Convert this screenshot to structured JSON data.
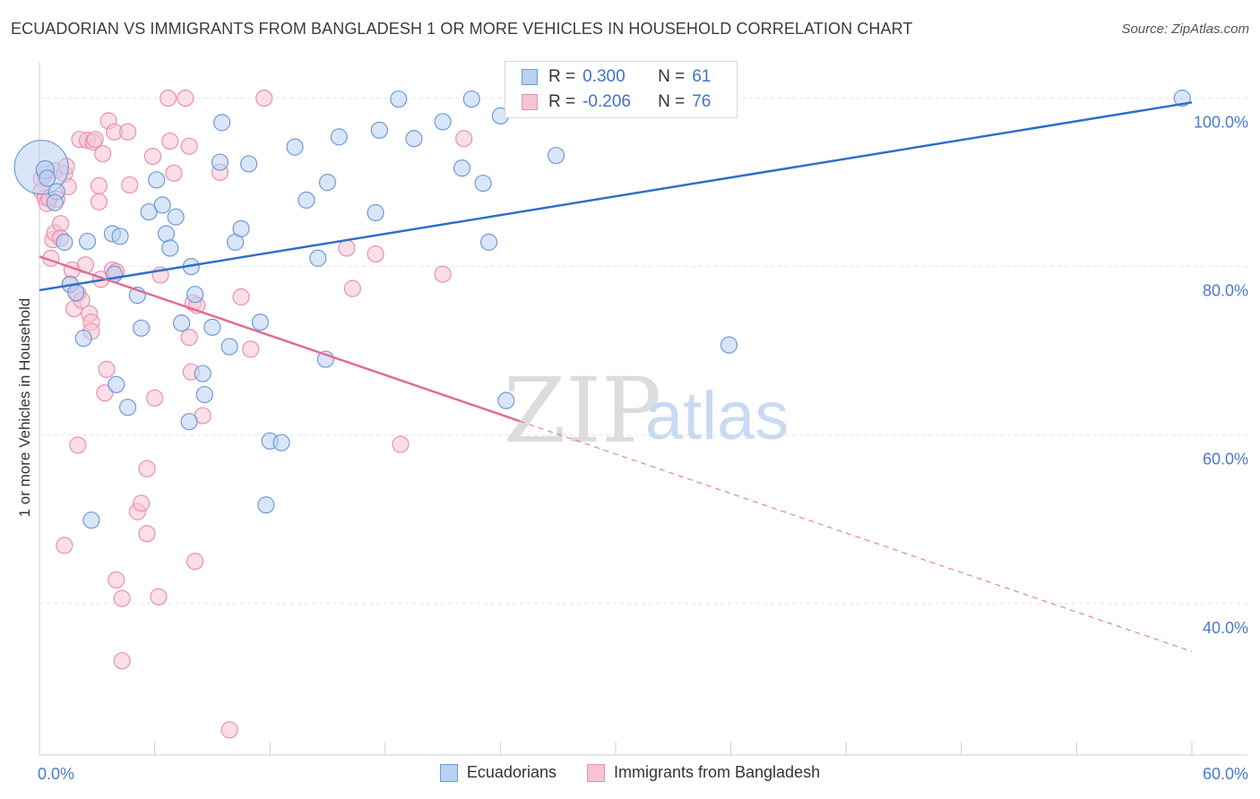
{
  "header": {
    "title": "ECUADORIAN VS IMMIGRANTS FROM BANGLADESH 1 OR MORE VEHICLES IN HOUSEHOLD CORRELATION CHART",
    "source": "Source: ZipAtlas.com"
  },
  "legend": {
    "r_label": "R =",
    "n_label": "N =",
    "series": [
      {
        "r": "0.300",
        "n": "61"
      },
      {
        "r": "-0.206",
        "n": "76"
      }
    ]
  },
  "bottom_legend": [
    "Ecuadorians",
    "Immigrants from Bangladesh"
  ],
  "watermark": {
    "zip": "ZIP",
    "atlas": "atlas"
  },
  "colors": {
    "blue_fill": "#b9d1f2",
    "blue_stroke": "#6e9ad8",
    "blue_line": "#2f6fc9",
    "pink_fill": "#f7c3d4",
    "pink_stroke": "#e891ad",
    "pink_line": "#e06c94",
    "tick_text": "#4a7acb",
    "grid": "#e4e4e4"
  },
  "chart_data": {
    "type": "scatter",
    "title": "ECUADORIAN VS IMMIGRANTS FROM BANGLADESH 1 OR MORE VEHICLES IN HOUSEHOLD CORRELATION CHART",
    "xlabel": "",
    "ylabel": "1 or more Vehicles in Household",
    "xlim": [
      0,
      60
    ],
    "ylim": [
      22,
      104
    ],
    "x_tick_labels": [
      "0.0%",
      "60.0%"
    ],
    "y_ticks": [
      40,
      60,
      80,
      100
    ],
    "y_tick_labels": [
      "40.0%",
      "60.0%",
      "80.0%",
      "100.0%"
    ],
    "series": [
      {
        "name": "Ecuadorians",
        "r": 0.3,
        "n": 61,
        "trend": {
          "x0": 0,
          "y0": 77.2,
          "x1": 60,
          "y1": 99.5,
          "solid_until": 60
        },
        "points": [
          [
            0.1,
            91.8,
            30
          ],
          [
            0.3,
            91.5,
            10
          ],
          [
            0.4,
            90.5,
            9
          ],
          [
            0.9,
            88.9,
            9
          ],
          [
            0.8,
            87.6,
            9
          ],
          [
            1.3,
            82.9,
            9
          ],
          [
            1.6,
            77.9,
            9
          ],
          [
            1.9,
            76.9,
            9
          ],
          [
            2.5,
            83.0,
            9
          ],
          [
            2.3,
            71.5,
            9
          ],
          [
            2.7,
            49.9,
            9
          ],
          [
            3.8,
            83.9,
            9
          ],
          [
            4.2,
            83.6,
            9
          ],
          [
            3.9,
            79.1,
            9
          ],
          [
            4.0,
            66.0,
            9
          ],
          [
            4.6,
            63.3,
            9
          ],
          [
            5.1,
            76.6,
            9
          ],
          [
            5.3,
            72.7,
            9
          ],
          [
            5.7,
            86.5,
            9
          ],
          [
            6.1,
            90.3,
            9
          ],
          [
            6.4,
            87.3,
            9
          ],
          [
            6.6,
            83.9,
            9
          ],
          [
            6.8,
            82.2,
            9
          ],
          [
            7.1,
            85.9,
            9
          ],
          [
            7.4,
            73.3,
            9
          ],
          [
            7.8,
            61.6,
            9
          ],
          [
            7.9,
            80.0,
            9
          ],
          [
            8.1,
            76.7,
            9
          ],
          [
            8.5,
            67.3,
            9
          ],
          [
            8.6,
            64.8,
            9
          ],
          [
            9.0,
            72.8,
            9
          ],
          [
            9.5,
            97.1,
            9
          ],
          [
            9.4,
            92.4,
            9
          ],
          [
            9.9,
            70.5,
            9
          ],
          [
            10.2,
            82.9,
            9
          ],
          [
            10.5,
            84.5,
            9
          ],
          [
            10.9,
            92.2,
            9
          ],
          [
            11.5,
            73.4,
            9
          ],
          [
            11.8,
            51.7,
            9
          ],
          [
            12.0,
            59.3,
            9
          ],
          [
            12.6,
            59.1,
            9
          ],
          [
            13.3,
            94.2,
            9
          ],
          [
            13.9,
            87.9,
            9
          ],
          [
            14.5,
            81.0,
            9
          ],
          [
            14.9,
            69.0,
            9
          ],
          [
            15.0,
            90.0,
            9
          ],
          [
            15.6,
            95.4,
            9
          ],
          [
            17.5,
            86.4,
            9
          ],
          [
            17.7,
            96.2,
            9
          ],
          [
            18.7,
            99.9,
            9
          ],
          [
            19.5,
            95.2,
            9
          ],
          [
            21.0,
            97.2,
            9
          ],
          [
            22.0,
            91.7,
            9
          ],
          [
            22.5,
            99.9,
            9
          ],
          [
            23.1,
            89.9,
            9
          ],
          [
            23.4,
            82.9,
            9
          ],
          [
            24.0,
            97.9,
            9
          ],
          [
            24.3,
            64.1,
            9
          ],
          [
            26.9,
            93.2,
            9
          ],
          [
            35.9,
            70.7,
            9
          ],
          [
            59.5,
            100.0,
            9
          ]
        ]
      },
      {
        "name": "Immigrants from Bangladesh",
        "r": -0.206,
        "n": 76,
        "trend": {
          "x0": 0,
          "y0": 81.2,
          "x1": 60,
          "y1": 34.3,
          "solid_until": 25
        },
        "points": [
          [
            0.1,
            90.4,
            9
          ],
          [
            0.1,
            89.0,
            9
          ],
          [
            0.3,
            88.2,
            9
          ],
          [
            0.3,
            91.0,
            9
          ],
          [
            0.4,
            87.5,
            9
          ],
          [
            0.6,
            81.0,
            9
          ],
          [
            0.7,
            83.2,
            9
          ],
          [
            0.8,
            84.0,
            9
          ],
          [
            0.8,
            91.4,
            9
          ],
          [
            0.9,
            88.0,
            9
          ],
          [
            1.1,
            85.1,
            9
          ],
          [
            1.1,
            83.4,
            9
          ],
          [
            1.3,
            46.9,
            9
          ],
          [
            1.3,
            91.0,
            9
          ],
          [
            1.5,
            89.5,
            9
          ],
          [
            1.6,
            77.9,
            9
          ],
          [
            1.7,
            79.6,
            9
          ],
          [
            1.8,
            75.0,
            9
          ],
          [
            2.0,
            76.8,
            9
          ],
          [
            2.0,
            58.8,
            9
          ],
          [
            2.1,
            95.1,
            9
          ],
          [
            2.2,
            76.0,
            9
          ],
          [
            2.4,
            80.2,
            9
          ],
          [
            2.5,
            95.0,
            9
          ],
          [
            2.6,
            74.4,
            9
          ],
          [
            2.7,
            73.4,
            9
          ],
          [
            2.7,
            72.3,
            9
          ],
          [
            2.8,
            94.8,
            9
          ],
          [
            2.9,
            95.1,
            9
          ],
          [
            3.1,
            89.6,
            9
          ],
          [
            3.1,
            87.7,
            9
          ],
          [
            3.2,
            78.5,
            9
          ],
          [
            3.3,
            93.4,
            9
          ],
          [
            3.4,
            65.0,
            9
          ],
          [
            3.5,
            67.8,
            9
          ],
          [
            3.6,
            97.3,
            9
          ],
          [
            3.8,
            79.6,
            9
          ],
          [
            3.9,
            96.0,
            9
          ],
          [
            4.0,
            79.4,
            9
          ],
          [
            4.0,
            42.8,
            9
          ],
          [
            4.3,
            40.6,
            9
          ],
          [
            4.3,
            33.2,
            9
          ],
          [
            4.6,
            96.0,
            9
          ],
          [
            4.7,
            89.7,
            9
          ],
          [
            5.1,
            50.9,
            9
          ],
          [
            5.3,
            51.9,
            9
          ],
          [
            5.6,
            48.3,
            9
          ],
          [
            5.6,
            56.0,
            9
          ],
          [
            5.9,
            93.1,
            9
          ],
          [
            6.0,
            64.4,
            9
          ],
          [
            6.3,
            79.0,
            9
          ],
          [
            6.2,
            40.8,
            9
          ],
          [
            6.7,
            100.0,
            9
          ],
          [
            6.8,
            94.9,
            9
          ],
          [
            7.0,
            91.1,
            9
          ],
          [
            7.6,
            100.0,
            9
          ],
          [
            7.8,
            94.3,
            9
          ],
          [
            7.8,
            71.6,
            9
          ],
          [
            7.9,
            67.5,
            9
          ],
          [
            8.0,
            75.7,
            9
          ],
          [
            8.1,
            45.0,
            9
          ],
          [
            8.2,
            75.4,
            9
          ],
          [
            8.5,
            62.3,
            9
          ],
          [
            9.4,
            91.2,
            9
          ],
          [
            9.9,
            25.0,
            9
          ],
          [
            10.5,
            76.4,
            9
          ],
          [
            11.0,
            70.2,
            9
          ],
          [
            16.0,
            82.2,
            9
          ],
          [
            16.3,
            77.4,
            9
          ],
          [
            17.5,
            81.5,
            9
          ],
          [
            18.8,
            58.9,
            9
          ],
          [
            21.0,
            79.1,
            9
          ],
          [
            22.1,
            95.2,
            9
          ],
          [
            11.7,
            100.0,
            9
          ],
          [
            1.4,
            91.9,
            9
          ],
          [
            0.5,
            88.1,
            9
          ]
        ]
      }
    ]
  }
}
